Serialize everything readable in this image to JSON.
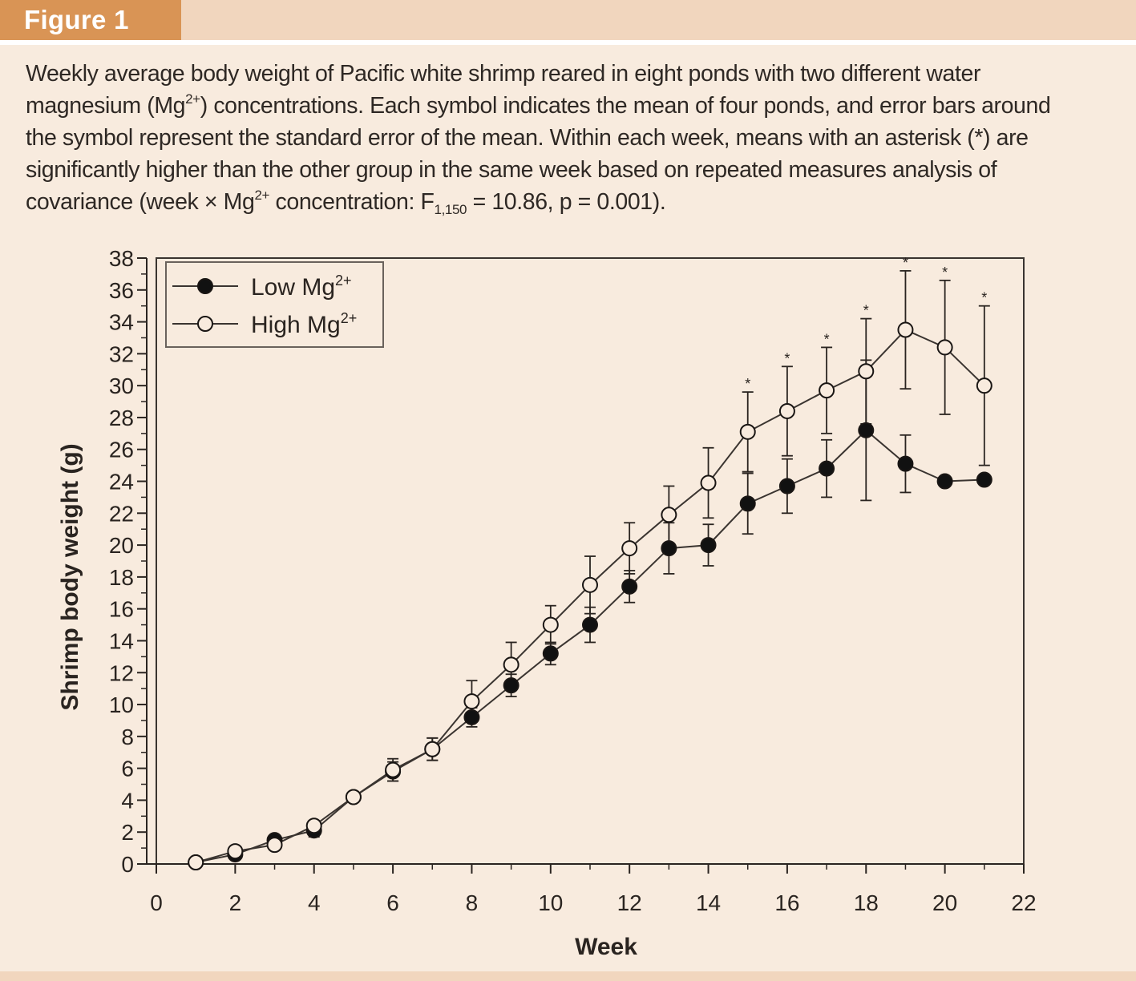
{
  "figure": {
    "label": "Figure 1"
  },
  "caption": {
    "line1": "Weekly average body weight of Pacific white shrimp reared in eight ponds with two different water",
    "line2_a": "magnesium (Mg",
    "line2_sup": "2+",
    "line2_b": ") concentrations. Each symbol indicates the mean of four ponds, and error bars around",
    "line3": "the symbol represent the standard error of the mean. Within each week, means with an asterisk (*) are",
    "line4": "significantly higher than the other group in the same week based on repeated measures analysis of",
    "line5_a": "covariance (week × Mg",
    "line5_sup": "2+",
    "line5_b": " concentration: F",
    "line5_sub": "1,150",
    "line5_c": " = 10.86, p = 0.001)."
  },
  "colors": {
    "background": "#f8ebde",
    "band": "#f1d6be",
    "label": "#d99455",
    "ink": "#2a2420"
  },
  "chart_data": {
    "type": "line",
    "title": "",
    "xlabel": "Week",
    "ylabel": "Shrimp body weight (g)",
    "xlim": [
      0,
      22
    ],
    "ylim": [
      0,
      38
    ],
    "xticks": [
      0,
      2,
      4,
      6,
      8,
      10,
      12,
      14,
      16,
      18,
      20,
      22
    ],
    "yticks": [
      0,
      2,
      4,
      6,
      8,
      10,
      12,
      14,
      16,
      18,
      20,
      22,
      24,
      26,
      28,
      30,
      32,
      34,
      36,
      38
    ],
    "legend_position": "top-left",
    "series": [
      {
        "name": "Low Mg",
        "name_sup": "2+",
        "marker": "filled-circle",
        "x": [
          1,
          2,
          3,
          4,
          5,
          6,
          7,
          8,
          9,
          10,
          11,
          12,
          13,
          14,
          15,
          16,
          17,
          18,
          19,
          20,
          21
        ],
        "y": [
          0.1,
          0.6,
          1.5,
          2.1,
          4.2,
          5.8,
          7.2,
          9.2,
          11.2,
          13.2,
          15.0,
          17.4,
          19.8,
          20.0,
          22.6,
          23.7,
          24.8,
          27.2,
          25.1,
          24.0,
          24.1
        ],
        "err": [
          0.1,
          0.2,
          0.3,
          0.4,
          0.3,
          0.6,
          0.7,
          0.6,
          0.7,
          0.7,
          1.1,
          1.0,
          1.6,
          1.3,
          1.9,
          1.7,
          1.8,
          4.4,
          1.8,
          0.3,
          0.3
        ]
      },
      {
        "name": "High Mg",
        "name_sup": "2+",
        "marker": "open-circle",
        "x": [
          1,
          2,
          3,
          4,
          5,
          6,
          7,
          8,
          9,
          10,
          11,
          12,
          13,
          14,
          15,
          16,
          17,
          18,
          19,
          20,
          21
        ],
        "y": [
          0.1,
          0.8,
          1.2,
          2.4,
          4.2,
          5.9,
          7.2,
          10.2,
          12.5,
          15.0,
          17.5,
          19.8,
          21.9,
          23.9,
          27.1,
          28.4,
          29.7,
          30.9,
          33.5,
          32.4,
          30.0
        ],
        "err": [
          0.1,
          0.2,
          0.3,
          0.3,
          0.3,
          0.7,
          0.7,
          1.3,
          1.4,
          1.2,
          1.8,
          1.6,
          1.8,
          2.2,
          2.5,
          2.8,
          2.7,
          3.3,
          3.7,
          4.2,
          5.0
        ]
      }
    ],
    "significance": {
      "symbol": "*",
      "weeks": [
        15,
        16,
        17,
        18,
        19,
        20,
        21
      ]
    }
  }
}
